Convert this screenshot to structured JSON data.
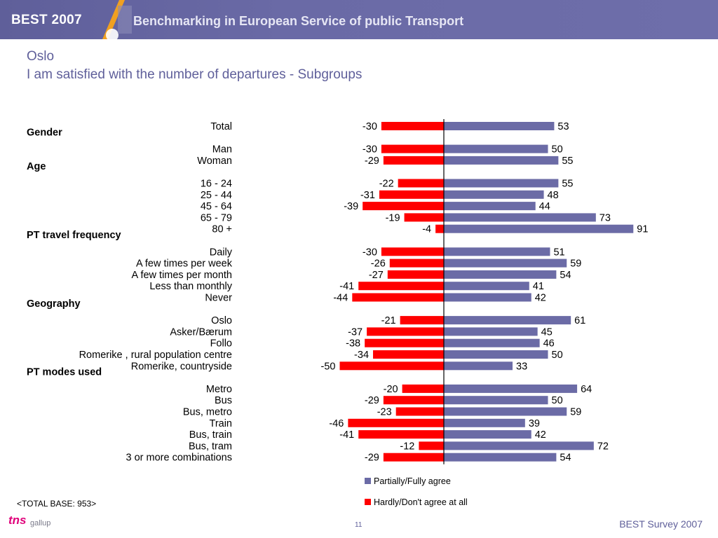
{
  "header": {
    "brand": "BEST 2007",
    "subtitle": "Benchmarking in European Service of public Transport"
  },
  "chart_data": {
    "type": "bar",
    "orientation": "horizontal",
    "title": "Oslo",
    "subtitle": "I am satisfied with the number of departures - Subgroups",
    "series": [
      {
        "name": "Partially/Fully agree",
        "color": "#6b6ba6"
      },
      {
        "name": "Hardly/Don't agree at all",
        "color": "#ff0000"
      }
    ],
    "rows": [
      {
        "kind": "item",
        "label": "Total",
        "agree": 53,
        "disagree": -30
      },
      {
        "kind": "group",
        "label": "Gender"
      },
      {
        "kind": "item",
        "label": "Man",
        "agree": 50,
        "disagree": -30
      },
      {
        "kind": "item",
        "label": "Woman",
        "agree": 55,
        "disagree": -29
      },
      {
        "kind": "group",
        "label": "Age"
      },
      {
        "kind": "item",
        "label": "16 - 24",
        "agree": 55,
        "disagree": -22
      },
      {
        "kind": "item",
        "label": "25 - 44",
        "agree": 48,
        "disagree": -31
      },
      {
        "kind": "item",
        "label": "45 - 64",
        "agree": 44,
        "disagree": -39
      },
      {
        "kind": "item",
        "label": "65 - 79",
        "agree": 73,
        "disagree": -19
      },
      {
        "kind": "item",
        "label": "80 +",
        "agree": 91,
        "disagree": -4
      },
      {
        "kind": "group",
        "label": "PT travel frequency"
      },
      {
        "kind": "item",
        "label": "Daily",
        "agree": 51,
        "disagree": -30
      },
      {
        "kind": "item",
        "label": "A few times per week",
        "agree": 59,
        "disagree": -26
      },
      {
        "kind": "item",
        "label": "A few times per month",
        "agree": 54,
        "disagree": -27
      },
      {
        "kind": "item",
        "label": "Less than monthly",
        "agree": 41,
        "disagree": -41
      },
      {
        "kind": "item",
        "label": "Never",
        "agree": 42,
        "disagree": -44
      },
      {
        "kind": "group",
        "label": "Geography"
      },
      {
        "kind": "item",
        "label": "Oslo",
        "agree": 61,
        "disagree": -21
      },
      {
        "kind": "item",
        "label": "Asker/Bærum",
        "agree": 45,
        "disagree": -37
      },
      {
        "kind": "item",
        "label": "Follo",
        "agree": 46,
        "disagree": -38
      },
      {
        "kind": "item",
        "label": "Romerike , rural population centre",
        "agree": 50,
        "disagree": -34
      },
      {
        "kind": "item",
        "label": "Romerike, countryside",
        "agree": 33,
        "disagree": -50
      },
      {
        "kind": "group",
        "label": "PT modes used"
      },
      {
        "kind": "item",
        "label": "Metro",
        "agree": 64,
        "disagree": -20
      },
      {
        "kind": "item",
        "label": "Bus",
        "agree": 50,
        "disagree": -29
      },
      {
        "kind": "item",
        "label": "Bus, metro",
        "agree": 59,
        "disagree": -23
      },
      {
        "kind": "item",
        "label": "Train",
        "agree": 39,
        "disagree": -46
      },
      {
        "kind": "item",
        "label": "Bus, train",
        "agree": 42,
        "disagree": -41
      },
      {
        "kind": "item",
        "label": "Bus, tram",
        "agree": 72,
        "disagree": -12
      },
      {
        "kind": "item",
        "label": "3 or more combinations",
        "agree": 54,
        "disagree": -29
      }
    ],
    "legend_position": "bottom-center",
    "grid": false
  },
  "footer": {
    "base": "<TOTAL BASE: 953>",
    "page": "11",
    "survey": "BEST Survey 2007",
    "logo_tns": "tns",
    "logo_gallup": "gallup"
  }
}
